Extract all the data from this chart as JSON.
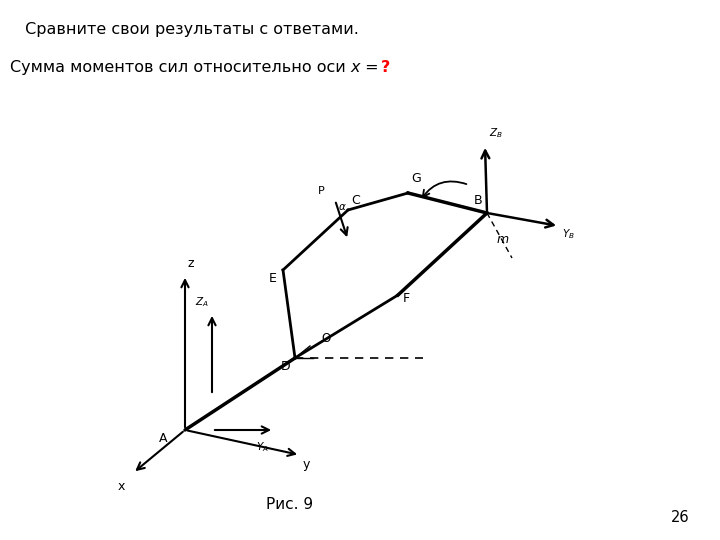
{
  "title_line1": " Сравните свои результаты с ответами.",
  "title_line2": "Сумма моментов сил относительно оси ",
  "title_italic": "x",
  "title_end": " = ",
  "title_question": "?",
  "caption": "Рис. 9",
  "page_number": "26",
  "bg_color": "#ffffff",
  "text_color": "#000000",
  "question_color": "#ff0000",
  "fig_width": 7.2,
  "fig_height": 5.4,
  "dpi": 100
}
